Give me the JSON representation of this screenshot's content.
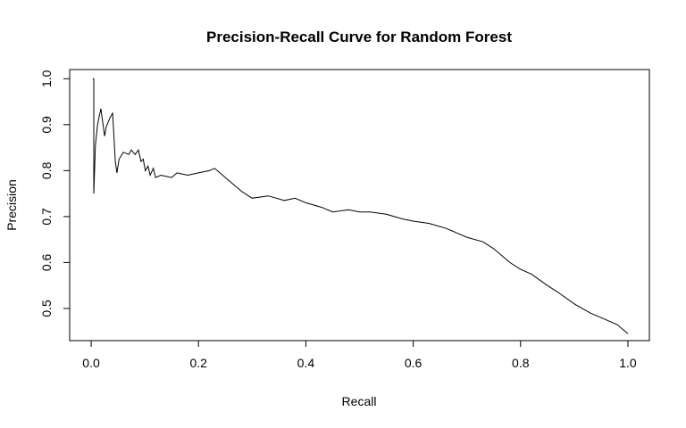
{
  "chart_data": {
    "type": "line",
    "title": "Precision-Recall Curve for Random Forest",
    "xlabel": "Recall",
    "ylabel": "Precision",
    "xlim": [
      -0.04,
      1.04
    ],
    "ylim": [
      0.43,
      1.02
    ],
    "xticks": [
      0.0,
      0.2,
      0.4,
      0.6,
      0.8,
      1.0
    ],
    "xtick_labels": [
      "0.0",
      "0.2",
      "0.4",
      "0.6",
      "0.8",
      "1.0"
    ],
    "yticks": [
      0.5,
      0.6,
      0.7,
      0.8,
      0.9,
      1.0
    ],
    "ytick_labels": [
      "0.5",
      "0.6",
      "0.7",
      "0.8",
      "0.9",
      "1.0"
    ],
    "grid": false,
    "line_color": "#000000",
    "series": [
      {
        "x": [
          0.003,
          0.005,
          0.005,
          0.008,
          0.012,
          0.018,
          0.025,
          0.028,
          0.035,
          0.04,
          0.045,
          0.048,
          0.052,
          0.06,
          0.07,
          0.075,
          0.082,
          0.088,
          0.093,
          0.097,
          0.101,
          0.106,
          0.11,
          0.116,
          0.12,
          0.13,
          0.15,
          0.16,
          0.18,
          0.2,
          0.22,
          0.23,
          0.25,
          0.26,
          0.28,
          0.3,
          0.33,
          0.36,
          0.38,
          0.4,
          0.43,
          0.45,
          0.48,
          0.5,
          0.52,
          0.55,
          0.58,
          0.6,
          0.63,
          0.66,
          0.68,
          0.7,
          0.73,
          0.75,
          0.78,
          0.8,
          0.82,
          0.85,
          0.87,
          0.9,
          0.93,
          0.96,
          0.98,
          1.0
        ],
        "y": [
          1.0,
          1.0,
          0.75,
          0.855,
          0.9,
          0.935,
          0.875,
          0.895,
          0.915,
          0.925,
          0.82,
          0.795,
          0.825,
          0.84,
          0.835,
          0.845,
          0.835,
          0.845,
          0.82,
          0.825,
          0.8,
          0.81,
          0.79,
          0.805,
          0.785,
          0.79,
          0.785,
          0.795,
          0.79,
          0.795,
          0.8,
          0.805,
          0.785,
          0.775,
          0.755,
          0.74,
          0.745,
          0.735,
          0.74,
          0.73,
          0.72,
          0.71,
          0.715,
          0.71,
          0.71,
          0.705,
          0.695,
          0.69,
          0.685,
          0.675,
          0.665,
          0.655,
          0.645,
          0.63,
          0.6,
          0.585,
          0.575,
          0.55,
          0.535,
          0.51,
          0.49,
          0.475,
          0.465,
          0.445
        ]
      }
    ]
  }
}
